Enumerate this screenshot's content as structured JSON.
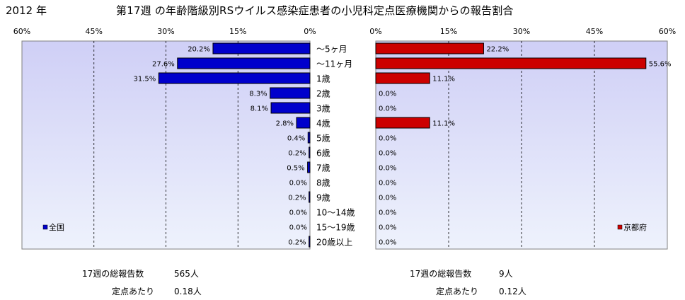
{
  "header": {
    "year": "2012 年",
    "title": "第17週 の年齢階級別RSウイルス感染症患者の小児科定点医療機関からの報告割合"
  },
  "colors": {
    "national_bar": "#0000cc",
    "kyoto_bar": "#cc0000",
    "plot_bg_top": "#cfcff6",
    "plot_bg_bottom": "#eef2fc"
  },
  "chart_data": [
    {
      "type": "bar",
      "orientation": "horizontal",
      "direction": "right-to-left",
      "legend": "全国",
      "legend_position": "bottom-left",
      "xlim": [
        0,
        60
      ],
      "ticks": [
        "60%",
        "45%",
        "30%",
        "15%",
        "0%"
      ],
      "tick_values": [
        60,
        45,
        30,
        15,
        0
      ],
      "grid": true,
      "categories": [
        "～5ヶ月",
        "～11ヶ月",
        "1歳",
        "2歳",
        "3歳",
        "4歳",
        "5歳",
        "6歳",
        "7歳",
        "8歳",
        "9歳",
        "10～14歳",
        "15～19歳",
        "20歳以上"
      ],
      "values": [
        20.2,
        27.6,
        31.5,
        8.3,
        8.1,
        2.8,
        0.4,
        0.2,
        0.5,
        0.0,
        0.2,
        0.0,
        0.0,
        0.2
      ],
      "labels": [
        "20.2%",
        "27.6%",
        "31.5%",
        "8.3%",
        "8.1%",
        "2.8%",
        "0.4%",
        "0.2%",
        "0.5%",
        "0.0%",
        "0.2%",
        "0.0%",
        "0.0%",
        "0.2%"
      ]
    },
    {
      "type": "bar",
      "orientation": "horizontal",
      "direction": "left-to-right",
      "legend": "京都府",
      "legend_position": "bottom-right",
      "xlim": [
        0,
        60
      ],
      "ticks": [
        "0%",
        "15%",
        "30%",
        "45%",
        "60%"
      ],
      "tick_values": [
        0,
        15,
        30,
        45,
        60
      ],
      "grid": true,
      "categories": [
        "～5ヶ月",
        "～11ヶ月",
        "1歳",
        "2歳",
        "3歳",
        "4歳",
        "5歳",
        "6歳",
        "7歳",
        "8歳",
        "9歳",
        "10～14歳",
        "15～19歳",
        "20歳以上"
      ],
      "values": [
        22.2,
        55.6,
        11.1,
        0.0,
        0.0,
        11.1,
        0.0,
        0.0,
        0.0,
        0.0,
        0.0,
        0.0,
        0.0,
        0.0
      ],
      "labels": [
        "22.2%",
        "55.6%",
        "11.1%",
        "0.0%",
        "0.0%",
        "11.1%",
        "0.0%",
        "0.0%",
        "0.0%",
        "0.0%",
        "0.0%",
        "0.0%",
        "0.0%",
        "0.0%"
      ]
    }
  ],
  "stats": {
    "national": {
      "total_label": "17週の総報告数",
      "total_value": "565人",
      "per_label": "定点あたり",
      "per_value": "0.18人"
    },
    "kyoto": {
      "total_label": "17週の総報告数",
      "total_value": "9人",
      "per_label": "定点あたり",
      "per_value": "0.12人"
    }
  }
}
